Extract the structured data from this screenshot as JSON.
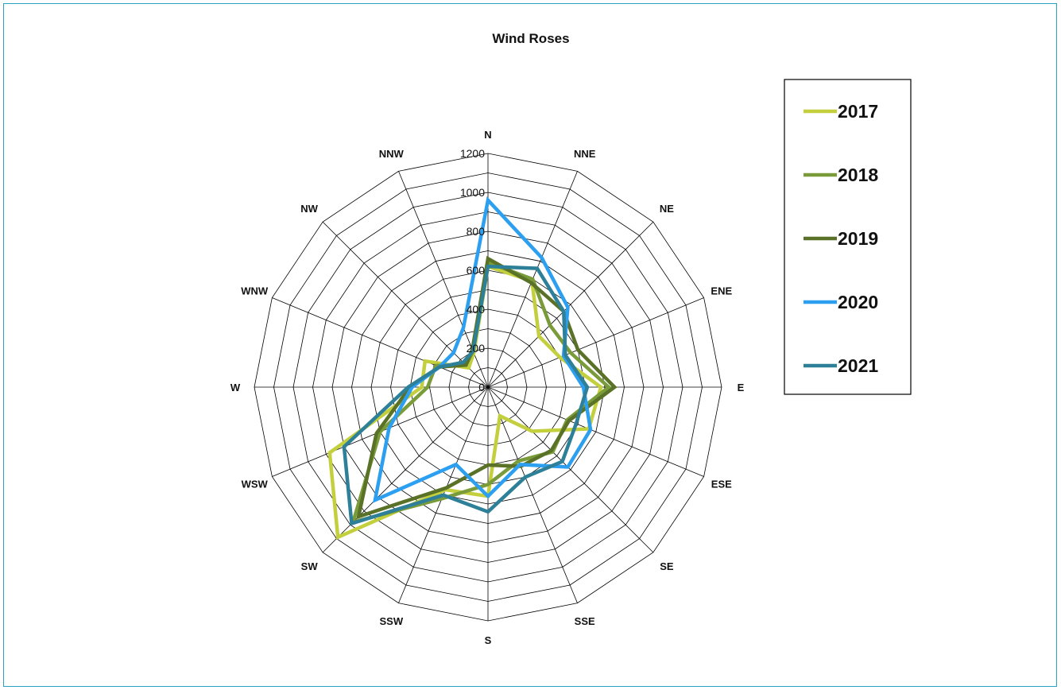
{
  "chart_data": {
    "type": "radar",
    "title": "Wind Roses",
    "directions": [
      "N",
      "NNE",
      "NE",
      "ENE",
      "E",
      "ESE",
      "SE",
      "SSE",
      "S",
      "SSW",
      "SW",
      "WSW",
      "W",
      "WNW",
      "NW",
      "NNW"
    ],
    "rlim": [
      0,
      1200
    ],
    "r_ticks": [
      0,
      200,
      400,
      600,
      800,
      1000,
      1200
    ],
    "tick_labels": [
      "0",
      "200",
      "400",
      "600",
      "800",
      "1000",
      "1200"
    ],
    "grid": true,
    "legend_position": "right",
    "series": [
      {
        "name": "2017",
        "color": "#c3cf3c",
        "values": [
          620,
          590,
          370,
          400,
          580,
          560,
          320,
          160,
          560,
          570,
          1090,
          880,
          340,
          350,
          140,
          190
        ]
      },
      {
        "name": "2018",
        "color": "#7a9b3a",
        "values": [
          640,
          600,
          450,
          460,
          620,
          440,
          470,
          410,
          500,
          620,
          980,
          600,
          310,
          290,
          160,
          200
        ]
      },
      {
        "name": "2019",
        "color": "#5a7227",
        "values": [
          660,
          580,
          550,
          500,
          650,
          450,
          460,
          440,
          400,
          560,
          940,
          620,
          400,
          270,
          160,
          210
        ]
      },
      {
        "name": "2020",
        "color": "#2c9ff0",
        "values": [
          960,
          720,
          580,
          420,
          490,
          570,
          580,
          430,
          560,
          430,
          820,
          550,
          390,
          270,
          250,
          330
        ]
      },
      {
        "name": "2021",
        "color": "#2e8099",
        "values": [
          620,
          660,
          550,
          430,
          510,
          490,
          540,
          500,
          640,
          600,
          990,
          800,
          410,
          270,
          180,
          200
        ]
      }
    ]
  }
}
